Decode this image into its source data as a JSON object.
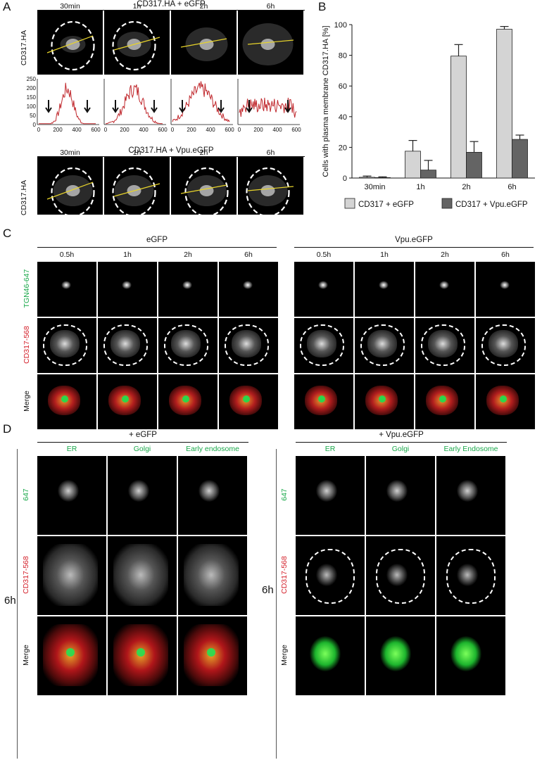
{
  "panelA": {
    "letter": "A",
    "top_title": "CD317.HA + eGFP",
    "bottom_title": "CD317.HA + Vpu.eGFP",
    "row_label": "CD317.HA",
    "times": [
      "30min",
      "1h",
      "2h",
      "6h"
    ],
    "y_ticks": [
      "250",
      "200",
      "150",
      "100",
      "50",
      "0"
    ],
    "x_ticks": [
      "0",
      "200",
      "400",
      "600"
    ]
  },
  "panelB": {
    "letter": "B",
    "chart_data": {
      "type": "bar",
      "categories": [
        "30min",
        "1h",
        "2h",
        "6h"
      ],
      "series": [
        {
          "name": "CD317 + eGFP",
          "values": [
            0.5,
            17.5,
            79.5,
            97
          ],
          "errors": [
            0.8,
            7,
            7.5,
            1.8
          ],
          "color": "#d4d4d4"
        },
        {
          "name": "CD317 + Vpu.eGFP",
          "values": [
            0.3,
            5.2,
            16.8,
            25.2
          ],
          "errors": [
            0.5,
            6.3,
            7,
            2.8
          ],
          "color": "#646464"
        }
      ],
      "ylabel": "Cells with plasma membrane CD317.HA [%]",
      "ylim": [
        0,
        100
      ],
      "yticks": [
        "0",
        "20",
        "40",
        "60",
        "80",
        "100"
      ],
      "legend": "bottom"
    }
  },
  "panelC": {
    "letter": "C",
    "left_group": "eGFP",
    "right_group": "Vpu.eGFP",
    "times": [
      "0.5h",
      "1h",
      "2h",
      "6h"
    ],
    "rows": [
      "TGN46-647",
      "CD317-568",
      "Merge"
    ]
  },
  "panelD": {
    "letter": "D",
    "left_group": "+ eGFP",
    "right_group": "+ Vpu.eGFP",
    "left_cols": [
      "ER",
      "Golgi",
      "Early endosome"
    ],
    "right_cols": [
      "ER",
      "Golgi",
      "Early Endosome"
    ],
    "rows": [
      "647",
      "CD317-568",
      "Merge"
    ],
    "time": "6h"
  },
  "colors": {
    "green_label": "#1aa84a",
    "red_label": "#d4202a",
    "profile_line": "#c0282d",
    "cut_line": "#e8d42a"
  }
}
